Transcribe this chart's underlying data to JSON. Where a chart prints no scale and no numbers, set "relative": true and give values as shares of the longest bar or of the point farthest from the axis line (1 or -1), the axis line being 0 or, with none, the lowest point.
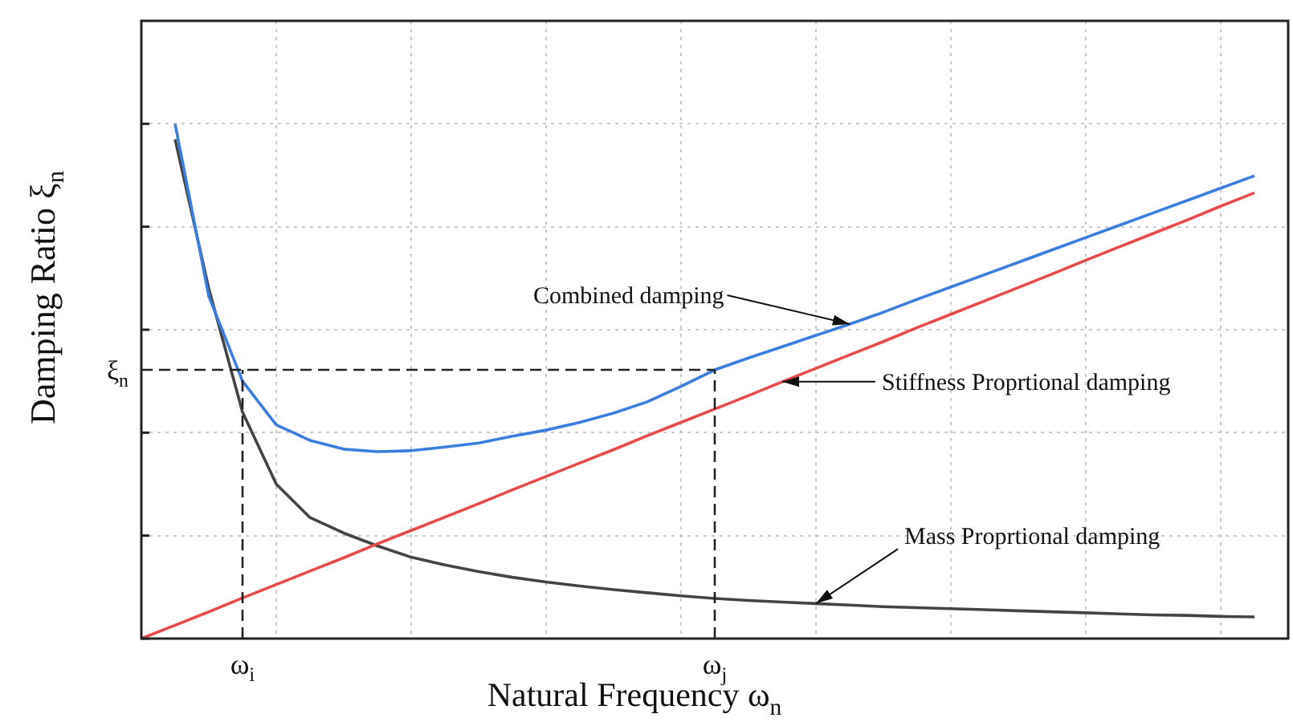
{
  "chart_data": {
    "type": "line",
    "relative": true,
    "xlabel": "Natural Frequency ω$_{n}$",
    "ylabel": "Damping Ratio ξ$_{n}$",
    "grid": true,
    "categories": [
      null,
      null,
      null,
      "ω$_{i}$",
      null,
      null,
      null,
      null,
      null,
      null,
      null,
      null,
      null,
      null,
      null,
      null,
      null,
      "ω$_{j}$",
      null,
      null,
      null,
      null,
      null,
      null,
      null,
      null,
      null,
      null,
      null,
      null,
      null,
      null,
      null,
      null,
      null
    ],
    "ref_lines": [
      {
        "axis": "x",
        "value": "ω$_{i}$",
        "line_style": "dashed"
      },
      {
        "axis": "x",
        "value": "ω$_{j}$",
        "line_style": "dashed"
      },
      {
        "axis": "y",
        "value": 0.522,
        "label": "ξ$_{n}$",
        "line_style": "dashed"
      }
    ],
    "series": [
      {
        "name": "Combined damping",
        "color": "#3a7fe0",
        "values": [
          null,
          1.0,
          0.665,
          0.5,
          0.415,
          0.385,
          0.368,
          0.363,
          0.365,
          0.372,
          0.38,
          0.393,
          0.405,
          0.42,
          0.438,
          0.46,
          0.49,
          0.522,
          0.545,
          0.567,
          0.589,
          0.611,
          0.634,
          0.659,
          0.683,
          0.707,
          0.731,
          0.755,
          0.779,
          0.803,
          0.827,
          0.851,
          0.875,
          0.899,
          null
        ]
      },
      {
        "name": "Stiffness Proprtional damping",
        "color": "#e84a4a",
        "values": [
          0,
          0.026,
          0.052,
          0.079,
          0.105,
          0.131,
          0.157,
          0.184,
          0.21,
          0.236,
          0.262,
          0.289,
          0.315,
          0.341,
          0.367,
          0.394,
          0.42,
          0.446,
          0.472,
          0.499,
          0.525,
          0.551,
          0.577,
          0.604,
          0.63,
          0.656,
          0.682,
          0.708,
          0.735,
          0.761,
          0.787,
          0.813,
          0.84,
          0.866,
          null
        ]
      },
      {
        "name": "Mass Proprtional damping",
        "color": "#444444",
        "values": [
          null,
          0.97,
          0.68,
          0.44,
          0.3,
          0.235,
          0.205,
          0.18,
          0.158,
          0.143,
          0.13,
          0.119,
          0.11,
          0.102,
          0.095,
          0.089,
          0.083,
          0.078,
          0.074,
          0.071,
          0.068,
          0.065,
          0.062,
          0.06,
          0.058,
          0.056,
          0.054,
          0.052,
          0.05,
          0.048,
          0.046,
          0.045,
          0.043,
          0.042,
          null
        ]
      }
    ]
  }
}
